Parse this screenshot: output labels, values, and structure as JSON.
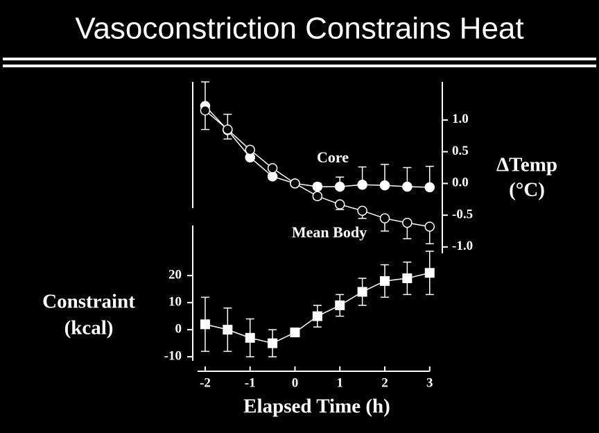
{
  "chart_data": [
    {
      "type": "line",
      "title": "Vasoconstriction Constrains Heat",
      "x": [
        -2,
        -1.5,
        -1,
        -0.5,
        0,
        0.5,
        1,
        1.5,
        2,
        2.5,
        3
      ],
      "xlim": [
        -2.2,
        3.05
      ],
      "ylim": [
        -1.1,
        1.6
      ],
      "yticks": [
        {
          "value": 1,
          "label": "1.0"
        },
        0.5,
        {
          "value": 0,
          "label": "0.0"
        },
        -0.5,
        {
          "value": -1,
          "label": "-1.0"
        }
      ],
      "y_axis_side": "right",
      "ylabel": [
        "ΔTemp",
        "(°C)"
      ],
      "series": [
        {
          "name": "Core",
          "color": "#ffffff",
          "marker": "filled-circle",
          "error_direction": "up",
          "values": [
            1.22,
            0.84,
            0.41,
            0.11,
            0,
            -0.05,
            -0.05,
            -0.02,
            -0.03,
            -0.05,
            -0.06
          ],
          "errors": [
            0.38,
            0.25,
            0,
            0,
            0,
            0.05,
            0.15,
            0.28,
            0.33,
            0.3,
            0.33
          ]
        },
        {
          "name": "Mean Body",
          "color": "#ffffff",
          "marker": "open-circle",
          "error_direction": "down",
          "values": [
            1.15,
            0.85,
            0.53,
            0.24,
            0,
            -0.2,
            -0.33,
            -0.43,
            -0.55,
            -0.62,
            -0.68
          ],
          "errors": [
            0.3,
            0.15,
            0.05,
            0,
            0,
            0.05,
            0.08,
            0.12,
            0.2,
            0.25,
            0.27
          ]
        }
      ]
    },
    {
      "type": "line",
      "x": [
        -2,
        -1.5,
        -1,
        -0.5,
        0,
        0.5,
        1,
        1.5,
        2,
        2.5,
        3
      ],
      "xlim": [
        -2.2,
        3.05
      ],
      "xticks": [
        -2,
        -1,
        0,
        1,
        2,
        3
      ],
      "xlabel": "Elapsed Time (h)",
      "ylim": [
        -11.5,
        38.5
      ],
      "yticks": [
        20,
        10,
        0,
        -10
      ],
      "y_axis_side": "left",
      "ylabel": [
        "Constraint",
        "(kcal)"
      ],
      "series": [
        {
          "name": "Constraint",
          "color": "#ffffff",
          "marker": "square",
          "error_direction": "both",
          "values": [
            2,
            0,
            -3,
            -5,
            -1,
            5,
            9,
            14,
            18,
            19,
            21
          ],
          "errors": [
            10,
            8,
            7,
            5,
            0,
            4,
            4,
            5,
            6,
            6,
            8
          ]
        }
      ]
    }
  ]
}
